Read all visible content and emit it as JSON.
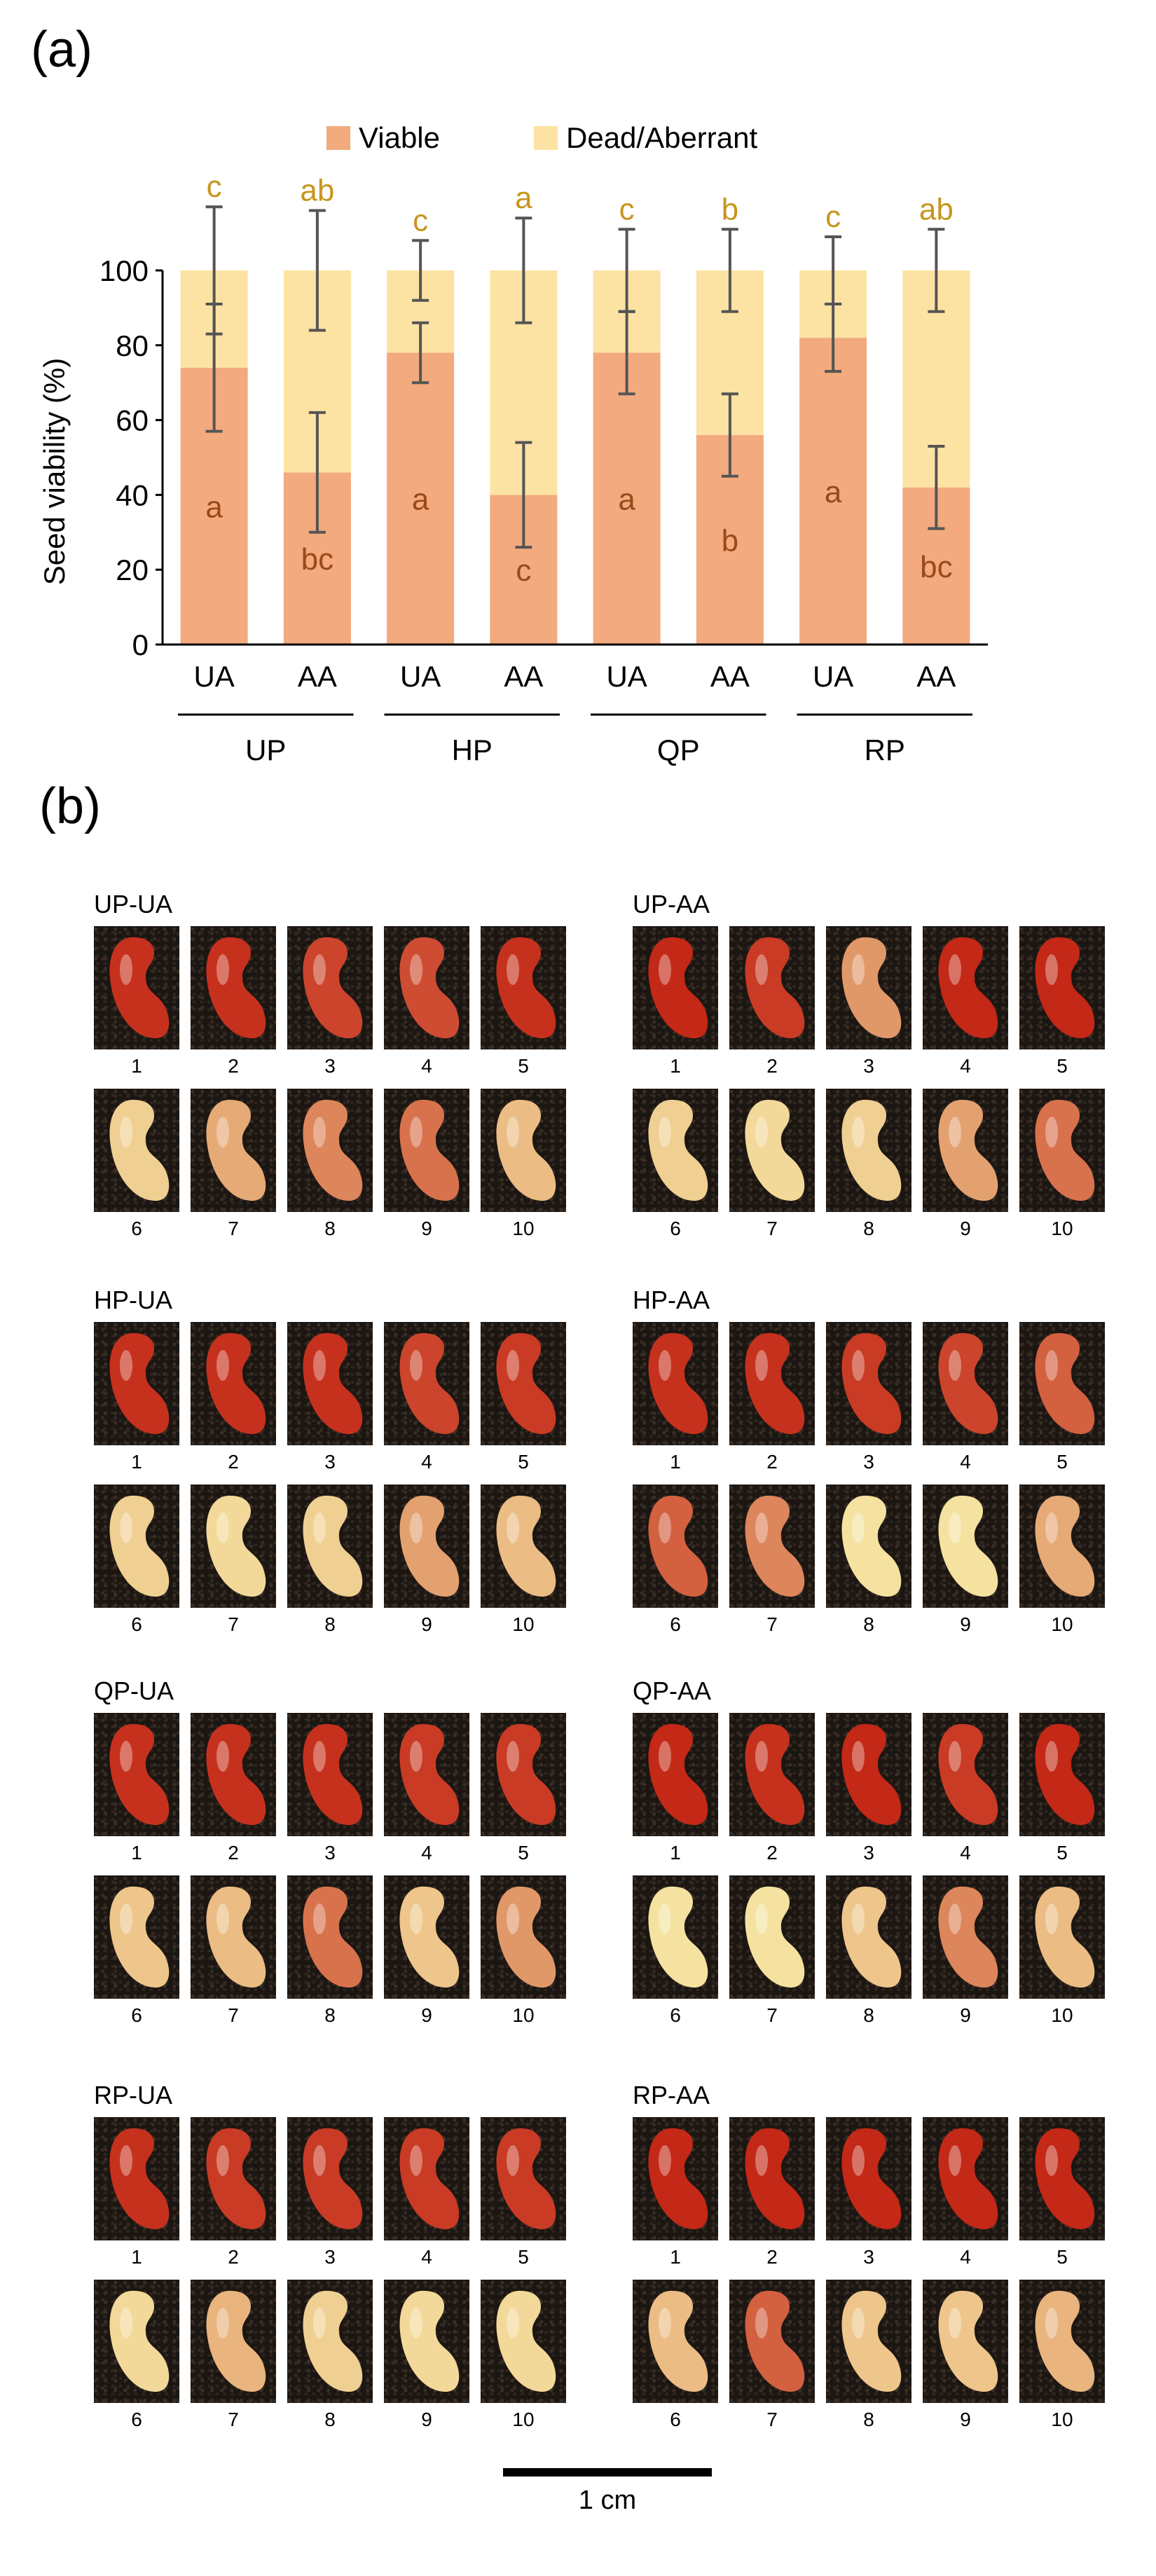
{
  "panel_a_label": "(a)",
  "panel_b_label": "(b)",
  "chart_data": {
    "type": "bar",
    "stacked": true,
    "ylabel": "Seed viability (%)",
    "ylim": [
      0,
      100
    ],
    "yticks": [
      0,
      20,
      40,
      60,
      80,
      100
    ],
    "legend_position": "top",
    "categories": [
      "UA",
      "AA",
      "UA",
      "AA",
      "UA",
      "AA",
      "UA",
      "AA"
    ],
    "groups": [
      "UP",
      "HP",
      "QP",
      "RP"
    ],
    "series": [
      {
        "name": "Viable",
        "color": "#f2aa7e",
        "letter_color": "#9a4a1a",
        "values": [
          74,
          46,
          78,
          40,
          78,
          56,
          82,
          42
        ],
        "errors": [
          17,
          16,
          8,
          14,
          11,
          11,
          9,
          11
        ],
        "letters": [
          "a",
          "bc",
          "a",
          "c",
          "a",
          "b",
          "a",
          "bc"
        ]
      },
      {
        "name": "Dead/Aberrant",
        "color": "#fde3a3",
        "letter_color": "#c8961e",
        "values": [
          26,
          54,
          22,
          60,
          22,
          44,
          18,
          58
        ],
        "errors": [
          17,
          16,
          8,
          14,
          11,
          11,
          9,
          11
        ],
        "letters": [
          "c",
          "ab",
          "c",
          "a",
          "c",
          "b",
          "c",
          "ab"
        ]
      }
    ]
  },
  "seed_groups": [
    {
      "title": "UP-UA",
      "stain": [
        0.95,
        0.95,
        0.85,
        0.8,
        0.95,
        0.1,
        0.3,
        0.5,
        0.6,
        0.2
      ]
    },
    {
      "title": "UP-AA",
      "stain": [
        1,
        0.9,
        0.4,
        1,
        1,
        0.1,
        0.05,
        0.1,
        0.35,
        0.6
      ]
    },
    {
      "title": "HP-UA",
      "stain": [
        0.95,
        0.95,
        0.95,
        0.85,
        0.9,
        0.1,
        0.05,
        0.1,
        0.35,
        0.2
      ]
    },
    {
      "title": "HP-AA",
      "stain": [
        0.95,
        0.95,
        0.9,
        0.85,
        0.7,
        0.7,
        0.5,
        0,
        0,
        0.3
      ]
    },
    {
      "title": "QP-UA",
      "stain": [
        0.95,
        0.95,
        0.95,
        0.9,
        0.9,
        0.15,
        0.2,
        0.6,
        0.15,
        0.4
      ]
    },
    {
      "title": "QP-AA",
      "stain": [
        1,
        0.95,
        1,
        0.9,
        1,
        0,
        0,
        0.15,
        0.5,
        0.2
      ]
    },
    {
      "title": "RP-UA",
      "stain": [
        0.95,
        0.9,
        0.9,
        0.9,
        0.9,
        0.05,
        0.25,
        0.1,
        0.05,
        0.05
      ]
    },
    {
      "title": "RP-AA",
      "stain": [
        1,
        1,
        1,
        1,
        1,
        0.2,
        0.7,
        0.15,
        0.15,
        0.25
      ]
    }
  ],
  "seed_numbers": [
    "1",
    "2",
    "3",
    "4",
    "5",
    "6",
    "7",
    "8",
    "9",
    "10"
  ],
  "scale_label": "1 cm"
}
